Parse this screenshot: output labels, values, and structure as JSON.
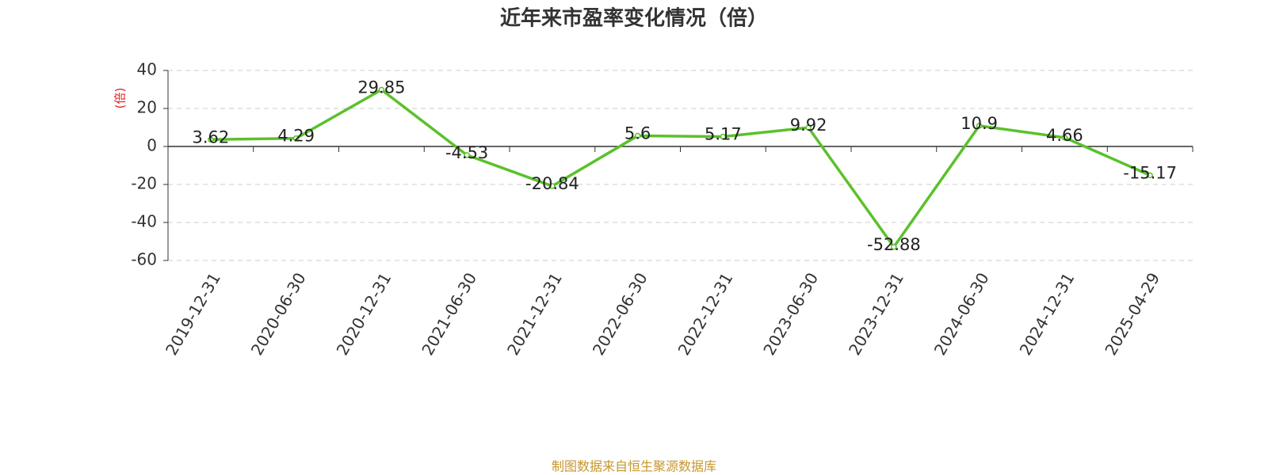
{
  "chart_data": {
    "type": "line",
    "title": "近年来市盈率变化情况（倍）",
    "y_label": "(倍)",
    "source": "制图数据来自恒生聚源数据库",
    "categories": [
      "2019-12-31",
      "2020-06-30",
      "2020-12-31",
      "2021-06-30",
      "2021-12-31",
      "2022-06-30",
      "2022-12-31",
      "2023-06-30",
      "2023-12-31",
      "2024-06-30",
      "2024-12-31",
      "2025-04-29"
    ],
    "series": [
      {
        "name": "市盈率",
        "color": "#5bc12a",
        "values": [
          3.62,
          4.29,
          29.85,
          -4.53,
          -20.84,
          5.6,
          5.17,
          9.92,
          -52.88,
          10.9,
          4.66,
          -15.17
        ]
      }
    ],
    "ylim": [
      -60,
      40
    ],
    "yticks": [
      40,
      20,
      0,
      -20,
      -40,
      -60
    ],
    "grid": true
  }
}
